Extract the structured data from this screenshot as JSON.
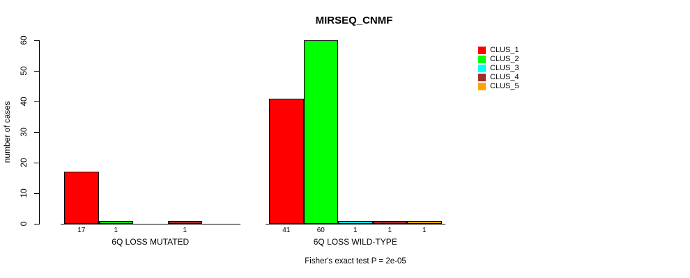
{
  "figure": {
    "title": "MIRSEQ_CNMF",
    "footnote": "Fisher's exact test P = 2e-05"
  },
  "chart_data": {
    "type": "bar",
    "title": "MIRSEQ_CNMF",
    "xlabel": "",
    "ylabel": "number of cases",
    "ylim": [
      0,
      60
    ],
    "yticks": [
      0,
      10,
      20,
      30,
      40,
      50,
      60
    ],
    "grid": false,
    "legend_position": "right",
    "clusters": [
      {
        "name": "CLUS_1",
        "color": "#FF0000"
      },
      {
        "name": "CLUS_2",
        "color": "#00FF00"
      },
      {
        "name": "CLUS_3",
        "color": "#00FFFF"
      },
      {
        "name": "CLUS_4",
        "color": "#A52A2A"
      },
      {
        "name": "CLUS_5",
        "color": "#FFA500"
      }
    ],
    "categories": [
      "6Q LOSS MUTATED",
      "6Q LOSS WILD-TYPE"
    ],
    "series": [
      {
        "name": "CLUS_1",
        "values": [
          17,
          41
        ]
      },
      {
        "name": "CLUS_2",
        "values": [
          1,
          60
        ]
      },
      {
        "name": "CLUS_3",
        "values": [
          0,
          1
        ]
      },
      {
        "name": "CLUS_4",
        "values": [
          1,
          1
        ]
      },
      {
        "name": "CLUS_5",
        "values": [
          0,
          1
        ]
      }
    ],
    "groups": [
      {
        "label": "6Q LOSS MUTATED",
        "values": [
          17,
          1,
          0,
          1,
          0
        ]
      },
      {
        "label": "6Q LOSS WILD-TYPE",
        "values": [
          41,
          60,
          1,
          1,
          1
        ]
      }
    ],
    "zero_value_labels_hidden": true,
    "footnote": "Fisher's exact test P = 2e-05"
  }
}
